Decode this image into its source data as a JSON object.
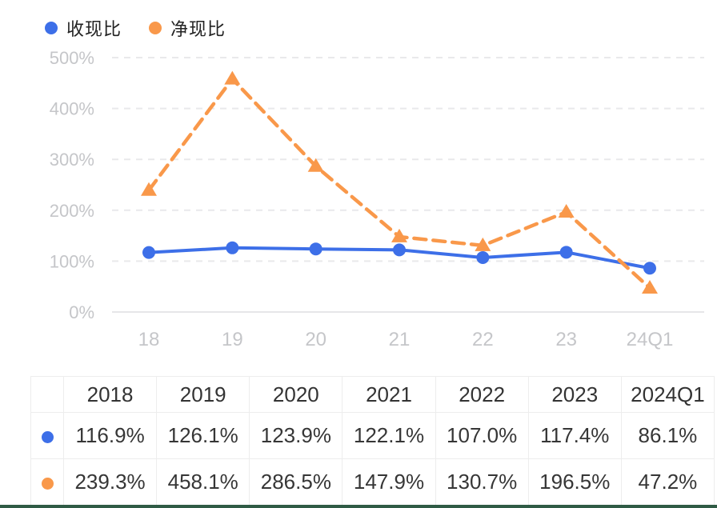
{
  "colors": {
    "series_blue": "#3D6FE8",
    "series_orange": "#F9984A",
    "axis_text": "#C5C6C9",
    "gridline": "#E9E9EB",
    "zero_line": "#E6E6E8",
    "table_border": "#EDEDED",
    "table_text": "#363636",
    "bottom_divider": "#2F5B45"
  },
  "legend": {
    "items": [
      {
        "label": "收现比",
        "color": "#3D6FE8"
      },
      {
        "label": "净现比",
        "color": "#F9984A"
      }
    ]
  },
  "chart_data": {
    "type": "line",
    "x": [
      "18",
      "19",
      "20",
      "21",
      "22",
      "23",
      "24Q1"
    ],
    "series": [
      {
        "name": "收现比",
        "values": [
          116.9,
          126.1,
          123.9,
          122.1,
          107.0,
          117.4,
          86.1
        ],
        "color": "#3D6FE8",
        "marker": "circle",
        "line_style": "solid"
      },
      {
        "name": "净现比",
        "values": [
          239.3,
          458.1,
          286.5,
          147.9,
          130.7,
          196.5,
          47.2
        ],
        "color": "#F9984A",
        "marker": "triangle",
        "line_style": "dashed"
      }
    ],
    "title": "",
    "xlabel": "",
    "ylabel": "",
    "ylim": [
      0,
      500
    ],
    "y_ticks": [
      0,
      100,
      200,
      300,
      400,
      500
    ],
    "y_tick_suffix": "%",
    "grid": "horizontal-dashed",
    "legend_position": "top-left"
  },
  "table": {
    "headers": [
      "",
      "2018",
      "2019",
      "2020",
      "2021",
      "2022",
      "2023",
      "2024Q1"
    ],
    "rows": [
      {
        "series": "收现比",
        "color": "#3D6FE8",
        "values": [
          "116.9%",
          "126.1%",
          "123.9%",
          "122.1%",
          "107.0%",
          "117.4%",
          "86.1%"
        ]
      },
      {
        "series": "净现比",
        "color": "#F9984A",
        "values": [
          "239.3%",
          "458.1%",
          "286.5%",
          "147.9%",
          "130.7%",
          "196.5%",
          "47.2%"
        ]
      }
    ]
  }
}
